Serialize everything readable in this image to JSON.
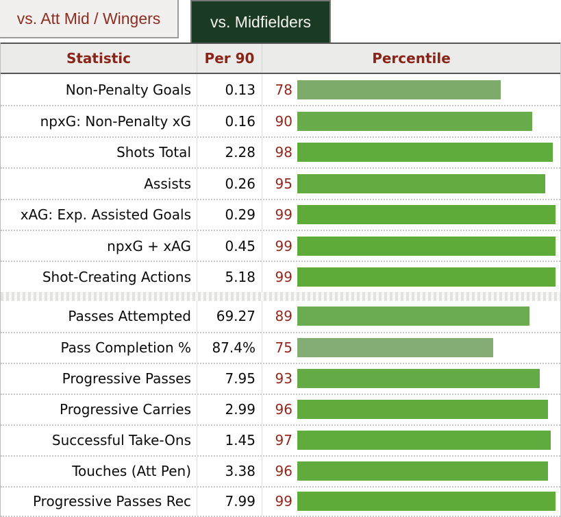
{
  "tabs": [
    {
      "label": "vs. Att Mid / Wingers",
      "active": false
    },
    {
      "label": "vs. Midfielders",
      "active": true
    }
  ],
  "columns": {
    "statistic": "Statistic",
    "per90": "Per 90",
    "percentile": "Percentile"
  },
  "colors": {
    "accent_red": "#8b2418",
    "percentile_number_red": "#92281c",
    "active_tab_green": "#1b3a23",
    "bar_green_high": "#5eab3a",
    "bar_green_muted": "#83ad74"
  },
  "groups": [
    {
      "rows": [
        {
          "statistic": "Non-Penalty Goals",
          "per90": "0.13",
          "percentile": 78,
          "bar_color": "#7dab69"
        },
        {
          "statistic": "npxG: Non-Penalty xG",
          "per90": "0.16",
          "percentile": 90,
          "bar_color": "#69ac4b"
        },
        {
          "statistic": "Shots Total",
          "per90": "2.28",
          "percentile": 98,
          "bar_color": "#5fab3b"
        },
        {
          "statistic": "Assists",
          "per90": "0.26",
          "percentile": 95,
          "bar_color": "#62ab40"
        },
        {
          "statistic": "xAG: Exp. Assisted Goals",
          "per90": "0.29",
          "percentile": 99,
          "bar_color": "#5eab3a"
        },
        {
          "statistic": "npxG + xAG",
          "per90": "0.45",
          "percentile": 99,
          "bar_color": "#5eab3a"
        },
        {
          "statistic": "Shot-Creating Actions",
          "per90": "5.18",
          "percentile": 99,
          "bar_color": "#5eab3a"
        }
      ]
    },
    {
      "rows": [
        {
          "statistic": "Passes Attempted",
          "per90": "69.27",
          "percentile": 89,
          "bar_color": "#6cac50"
        },
        {
          "statistic": "Pass Completion %",
          "per90": "87.4%",
          "percentile": 75,
          "bar_color": "#83ad74"
        },
        {
          "statistic": "Progressive Passes",
          "per90": "7.95",
          "percentile": 93,
          "bar_color": "#65ab45"
        },
        {
          "statistic": "Progressive Carries",
          "per90": "2.99",
          "percentile": 96,
          "bar_color": "#61ab3e"
        },
        {
          "statistic": "Successful Take-Ons",
          "per90": "1.45",
          "percentile": 97,
          "bar_color": "#60ab3d"
        },
        {
          "statistic": "Touches (Att Pen)",
          "per90": "3.38",
          "percentile": 96,
          "bar_color": "#61ab3e"
        },
        {
          "statistic": "Progressive Passes Rec",
          "per90": "7.99",
          "percentile": 99,
          "bar_color": "#5eab3a"
        }
      ]
    }
  ]
}
